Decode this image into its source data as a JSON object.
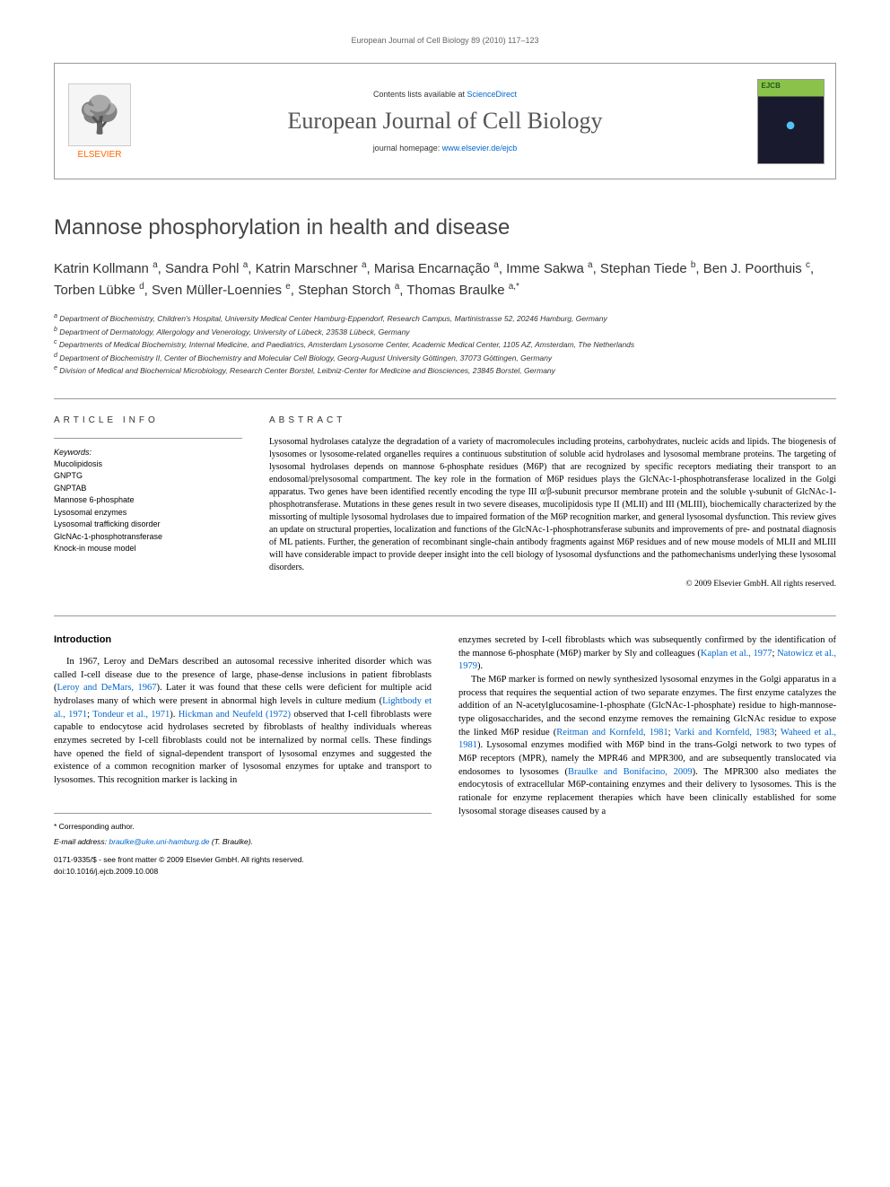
{
  "running_header": "European Journal of Cell Biology 89 (2010) 117–123",
  "masthead": {
    "publisher": "ELSEVIER",
    "contents_prefix": "Contents lists available at ",
    "contents_link": "ScienceDirect",
    "journal_name": "European Journal of Cell Biology",
    "homepage_prefix": "journal homepage: ",
    "homepage_link": "www.elsevier.de/ejcb",
    "cover_label": "EJCB"
  },
  "title": "Mannose phosphorylation in health and disease",
  "authors_html": "Katrin Kollmann <sup>a</sup>, Sandra Pohl <sup>a</sup>, Katrin Marschner <sup>a</sup>, Marisa Encarnação <sup>a</sup>, Imme Sakwa <sup>a</sup>, Stephan Tiede <sup>b</sup>, Ben J. Poorthuis <sup>c</sup>, Torben Lübke <sup>d</sup>, Sven Müller-Loennies <sup>e</sup>, Stephan Storch <sup>a</sup>, Thomas Braulke <sup>a,*</sup>",
  "affiliations": [
    "a Department of Biochemistry, Children's Hospital, University Medical Center Hamburg-Eppendorf, Research Campus, Martinistrasse 52, 20246 Hamburg, Germany",
    "b Department of Dermatology, Allergology and Venerology, University of Lübeck, 23538 Lübeck, Germany",
    "c Departments of Medical Biochemistry, Internal Medicine, and Paediatrics, Amsterdam Lysosome Center, Academic Medical Center, 1105 AZ, Amsterdam, The Netherlands",
    "d Department of Biochemistry II, Center of Biochemistry and Molecular Cell Biology, Georg-August University Göttingen, 37073 Göttingen, Germany",
    "e Division of Medical and Biochemical Microbiology, Research Center Borstel, Leibniz-Center for Medicine and Biosciences, 23845 Borstel, Germany"
  ],
  "article_info_heading": "ARTICLE INFO",
  "keywords_label": "Keywords:",
  "keywords": [
    "Mucolipidosis",
    "GNPTG",
    "GNPTAB",
    "Mannose 6-phosphate",
    "Lysosomal enzymes",
    "Lysosomal trafficking disorder",
    "GlcNAc-1-phosphotransferase",
    "Knock-in mouse model"
  ],
  "abstract_heading": "ABSTRACT",
  "abstract_text": "Lysosomal hydrolases catalyze the degradation of a variety of macromolecules including proteins, carbohydrates, nucleic acids and lipids. The biogenesis of lysosomes or lysosome-related organelles requires a continuous substitution of soluble acid hydrolases and lysosomal membrane proteins. The targeting of lysosomal hydrolases depends on mannose 6-phosphate residues (M6P) that are recognized by specific receptors mediating their transport to an endosomal/prelysosomal compartment. The key role in the formation of M6P residues plays the GlcNAc-1-phosphotransferase localized in the Golgi apparatus. Two genes have been identified recently encoding the type III α/β-subunit precursor membrane protein and the soluble γ-subunit of GlcNAc-1-phosphotransferase. Mutations in these genes result in two severe diseases, mucolipidosis type II (MLII) and III (MLIII), biochemically characterized by the missorting of multiple lysosomal hydrolases due to impaired formation of the M6P recognition marker, and general lysosomal dysfunction. This review gives an update on structural properties, localization and functions of the GlcNAc-1-phosphotransferase subunits and improvements of pre- and postnatal diagnosis of ML patients. Further, the generation of recombinant single-chain antibody fragments against M6P residues and of new mouse models of MLII and MLIII will have considerable impact to provide deeper insight into the cell biology of lysosomal dysfunctions and the pathomechanisms underlying these lysosomal disorders.",
  "abstract_copyright": "© 2009 Elsevier GmbH. All rights reserved.",
  "intro_heading": "Introduction",
  "col1_p1_a": "In 1967, Leroy and DeMars described an autosomal recessive inherited disorder which was called I-cell disease due to the presence of large, phase-dense inclusions in patient fibroblasts (",
  "col1_p1_ref1": "Leroy and DeMars, 1967",
  "col1_p1_b": "). Later it was found that these cells were deficient for multiple acid hydrolases many of which were present in abnormal high levels in culture medium (",
  "col1_p1_ref2": "Lightbody et al., 1971",
  "col1_p1_c": "; ",
  "col1_p1_ref3": "Tondeur et al., 1971",
  "col1_p1_d": "). ",
  "col1_p1_ref4": "Hickman and Neufeld (1972)",
  "col1_p1_e": " observed that I-cell fibroblasts were capable to endocytose acid hydrolases secreted by fibroblasts of healthy individuals whereas enzymes secreted by I-cell fibroblasts could not be internalized by normal cells. These findings have opened the field of signal-dependent transport of lysosomal enzymes and suggested the existence of a common recognition marker of lysosomal enzymes for uptake and transport to lysosomes. This recognition marker is lacking in",
  "col2_p1_a": "enzymes secreted by I-cell fibroblasts which was subsequently confirmed by the identification of the mannose 6-phosphate (M6P) marker by Sly and colleagues (",
  "col2_p1_ref1": "Kaplan et al., 1977",
  "col2_p1_b": "; ",
  "col2_p1_ref2": "Natowicz et al., 1979",
  "col2_p1_c": ").",
  "col2_p2_a": "The M6P marker is formed on newly synthesized lysosomal enzymes in the Golgi apparatus in a process that requires the sequential action of two separate enzymes. The first enzyme catalyzes the addition of an N-acetylglucosamine-1-phosphate (GlcNAc-1-phosphate) residue to high-mannose-type oligosaccharides, and the second enzyme removes the remaining GlcNAc residue to expose the linked M6P residue (",
  "col2_p2_ref1": "Reitman and Kornfeld, 1981",
  "col2_p2_b": "; ",
  "col2_p2_ref2": "Varki and Kornfeld, 1983",
  "col2_p2_c": "; ",
  "col2_p2_ref3": "Waheed et al., 1981",
  "col2_p2_d": "). Lysosomal enzymes modified with M6P bind in the trans-Golgi network to two types of M6P receptors (MPR), namely the MPR46 and MPR300, and are subsequently translocated via endosomes to lysosomes (",
  "col2_p2_ref4": "Braulke and Bonifacino, 2009",
  "col2_p2_e": "). The MPR300 also mediates the endocytosis of extracellular M6P-containing enzymes and their delivery to lysosomes. This is the rationale for enzyme replacement therapies which have been clinically established for some lysosomal storage diseases caused by a",
  "footer": {
    "corresponding": "* Corresponding author.",
    "email_label": "E-mail address: ",
    "email": "braulke@uke.uni-hamburg.de",
    "email_suffix": " (T. Braulke).",
    "copyright_line": "0171-9335/$ - see front matter © 2009 Elsevier GmbH. All rights reserved.",
    "doi": "doi:10.1016/j.ejcb.2009.10.008"
  }
}
